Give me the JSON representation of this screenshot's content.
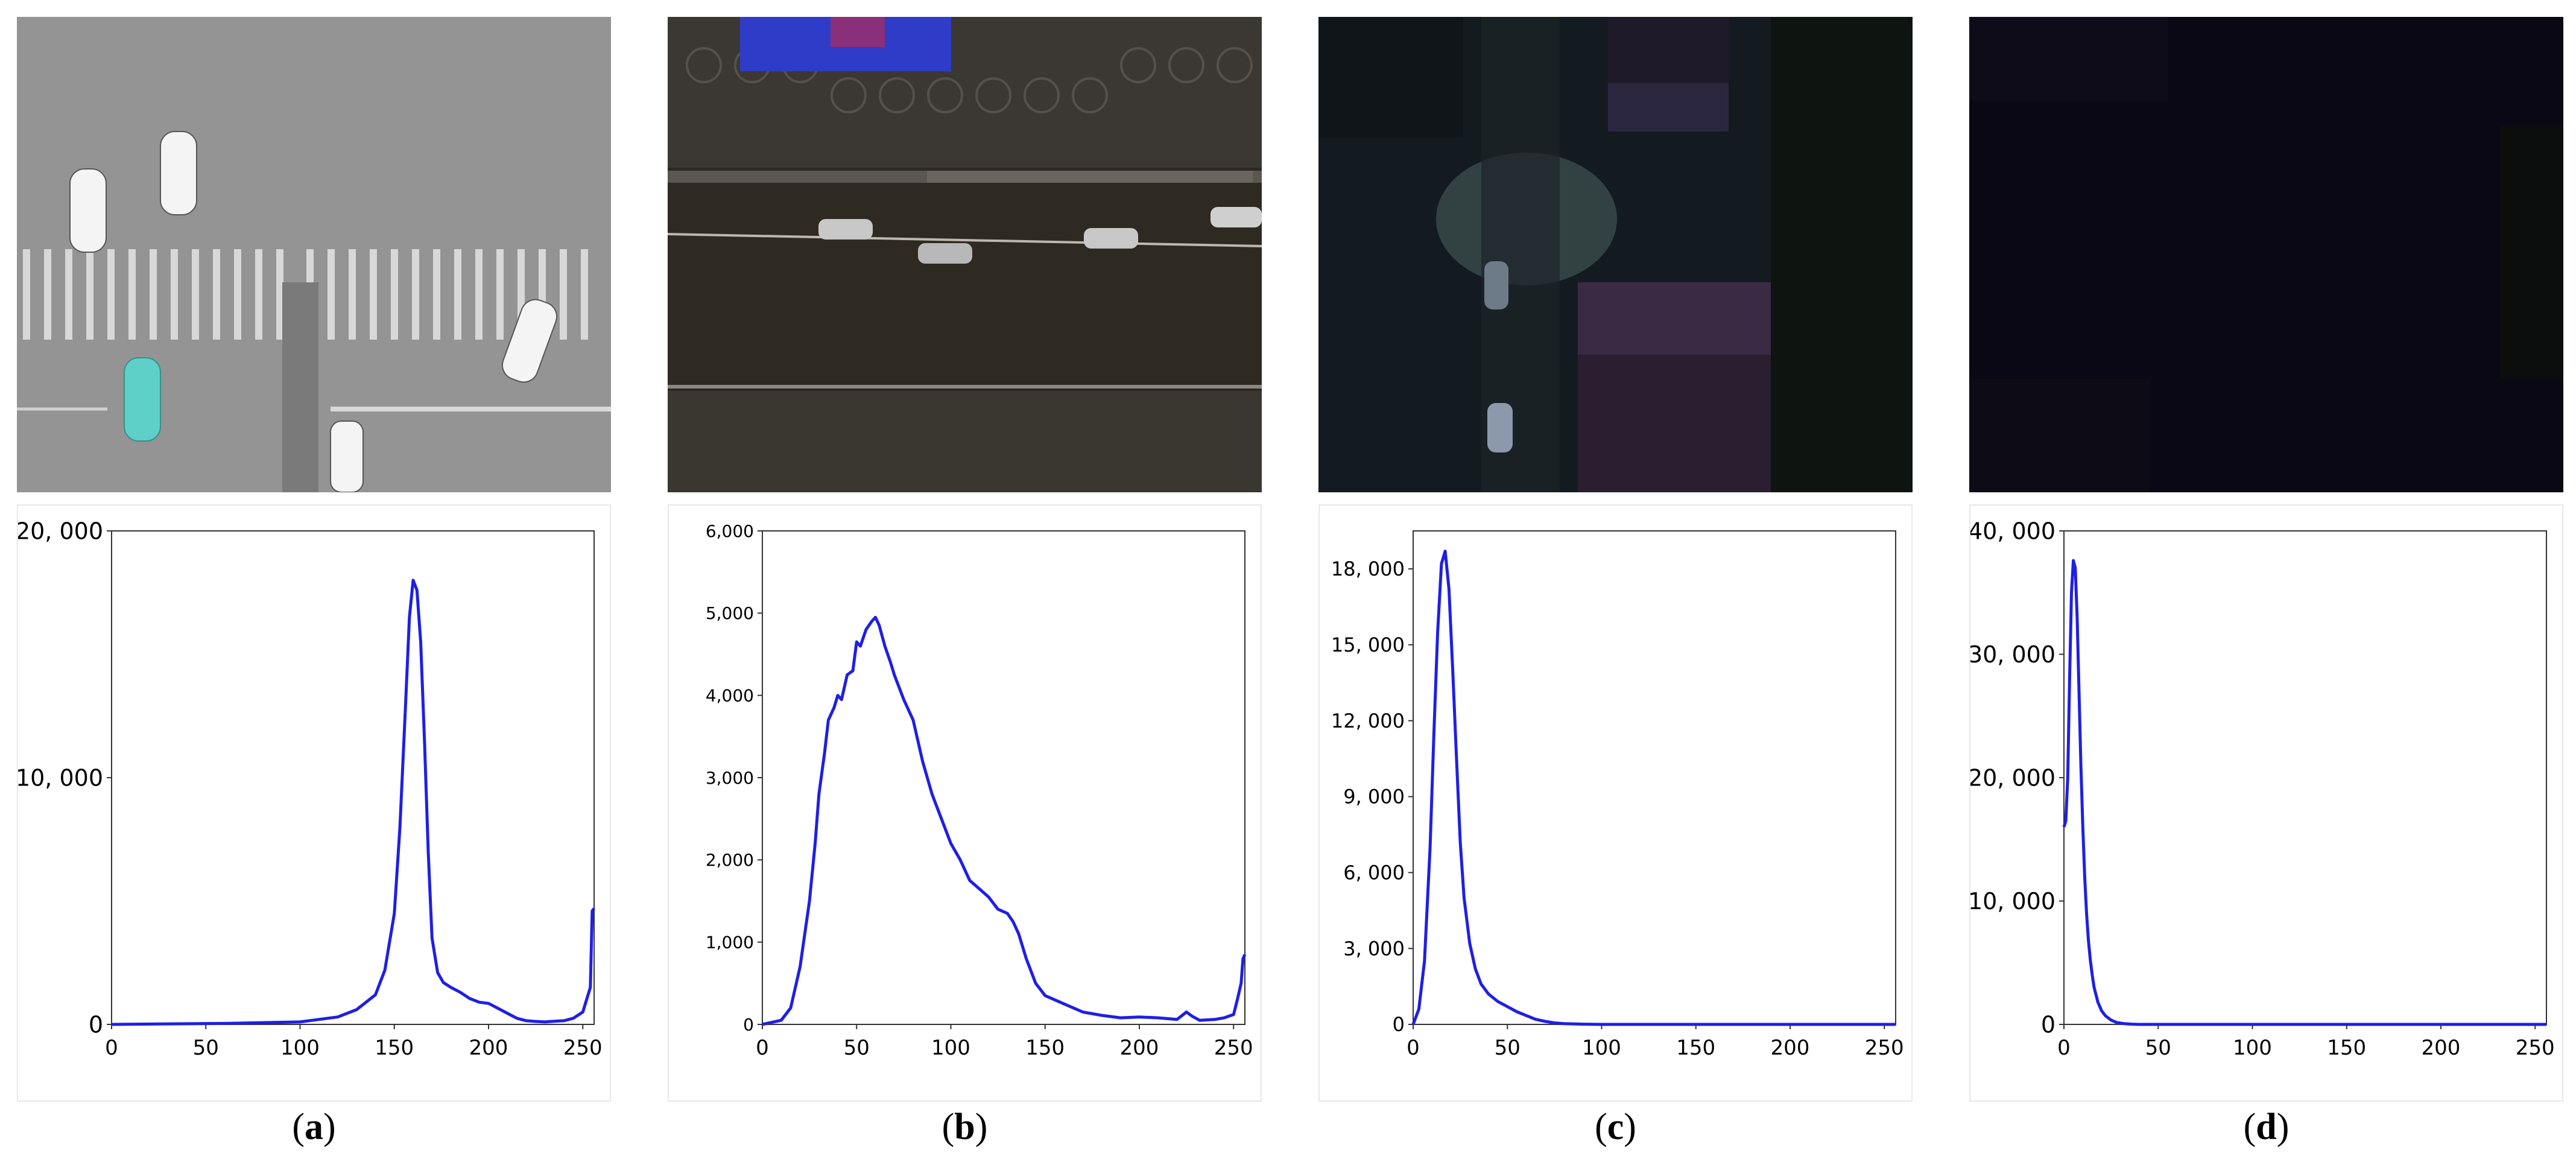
{
  "panels": [
    {
      "letter": "a",
      "scene": "day"
    },
    {
      "letter": "b",
      "scene": "evening"
    },
    {
      "letter": "c",
      "scene": "night"
    },
    {
      "letter": "d",
      "scene": "dark-night"
    }
  ],
  "colors": {
    "line": "#1f1fe6",
    "axis": "#333333"
  },
  "chart_data": [
    {
      "type": "line",
      "xlim": [
        0,
        256
      ],
      "ylim": [
        0,
        20000
      ],
      "xticks": [
        0,
        50,
        100,
        150,
        200,
        250
      ],
      "xtick_labels": [
        "0",
        "50",
        "100",
        "150",
        "200",
        "250"
      ],
      "yticks": [
        0,
        10000,
        20000
      ],
      "ytick_labels": [
        "0",
        "10, 000",
        "20, 000"
      ],
      "tick_font": 38,
      "series": [
        {
          "x": [
            0,
            60,
            100,
            120,
            130,
            140,
            145,
            150,
            153,
            156,
            158,
            160,
            162,
            164,
            166,
            168,
            170,
            173,
            176,
            180,
            185,
            190,
            195,
            200,
            205,
            210,
            215,
            220,
            225,
            230,
            235,
            240,
            245,
            250,
            252,
            254,
            255,
            256
          ],
          "y": [
            0,
            40,
            100,
            300,
            600,
            1200,
            2200,
            4500,
            8000,
            13000,
            16500,
            18000,
            17600,
            15500,
            11500,
            7000,
            3500,
            2100,
            1700,
            1500,
            1300,
            1050,
            900,
            850,
            650,
            450,
            250,
            150,
            120,
            100,
            130,
            150,
            250,
            500,
            1000,
            1500,
            4600,
            4700
          ]
        }
      ]
    },
    {
      "type": "line",
      "xlim": [
        0,
        256
      ],
      "ylim": [
        0,
        6000
      ],
      "xticks": [
        0,
        50,
        100,
        150,
        200,
        250
      ],
      "xtick_labels": [
        "0",
        "50",
        "100",
        "150",
        "200",
        "250"
      ],
      "yticks": [
        0,
        1000,
        2000,
        3000,
        4000,
        5000,
        6000
      ],
      "ytick_labels": [
        "0",
        "1,000",
        "2,000",
        "3,000",
        "4,000",
        "5,000",
        "6,000"
      ],
      "tick_font": 28,
      "series": [
        {
          "x": [
            0,
            10,
            15,
            20,
            25,
            28,
            30,
            33,
            35,
            38,
            40,
            42,
            45,
            48,
            50,
            52,
            55,
            58,
            60,
            62,
            65,
            68,
            70,
            75,
            80,
            85,
            90,
            95,
            100,
            105,
            110,
            115,
            120,
            125,
            130,
            133,
            136,
            140,
            145,
            150,
            160,
            170,
            180,
            190,
            200,
            210,
            220,
            225,
            228,
            232,
            240,
            245,
            250,
            252,
            254,
            255,
            256
          ],
          "y": [
            0,
            50,
            200,
            700,
            1500,
            2200,
            2800,
            3300,
            3700,
            3850,
            4000,
            3950,
            4250,
            4300,
            4650,
            4600,
            4800,
            4900,
            4950,
            4850,
            4600,
            4400,
            4250,
            3950,
            3700,
            3200,
            2800,
            2500,
            2200,
            2000,
            1750,
            1650,
            1550,
            1400,
            1350,
            1250,
            1100,
            800,
            500,
            350,
            250,
            150,
            110,
            80,
            90,
            80,
            60,
            150,
            100,
            50,
            60,
            80,
            120,
            300,
            500,
            800,
            850
          ]
        }
      ]
    },
    {
      "type": "line",
      "xlim": [
        0,
        256
      ],
      "ylim": [
        0,
        19500
      ],
      "xticks": [
        0,
        50,
        100,
        150,
        200,
        250
      ],
      "xtick_labels": [
        "0",
        "50",
        "100",
        "150",
        "200",
        "250"
      ],
      "yticks": [
        0,
        3000,
        6000,
        9000,
        12000,
        15000,
        18000
      ],
      "ytick_labels": [
        "0",
        "3, 000",
        "6, 000",
        "9, 000",
        "12, 000",
        "15, 000",
        "18, 000"
      ],
      "tick_font": 32,
      "series": [
        {
          "x": [
            0,
            3,
            6,
            9,
            11,
            13,
            15,
            17,
            19,
            21,
            23,
            25,
            27,
            30,
            33,
            36,
            40,
            45,
            50,
            55,
            60,
            65,
            70,
            75,
            80,
            90,
            100,
            150,
            200,
            256
          ],
          "y": [
            0,
            600,
            2500,
            7000,
            11500,
            15500,
            18200,
            18700,
            17200,
            14000,
            10500,
            7200,
            5000,
            3200,
            2200,
            1600,
            1200,
            900,
            700,
            500,
            350,
            200,
            120,
            60,
            30,
            10,
            0,
            0,
            0,
            0
          ]
        }
      ]
    },
    {
      "type": "line",
      "xlim": [
        0,
        256
      ],
      "ylim": [
        0,
        40000
      ],
      "xticks": [
        0,
        50,
        100,
        150,
        200,
        250
      ],
      "xtick_labels": [
        "0",
        "50",
        "100",
        "150",
        "200",
        "250"
      ],
      "yticks": [
        0,
        10000,
        20000,
        30000,
        40000
      ],
      "ytick_labels": [
        "0",
        "10, 000",
        "20, 000",
        "30, 000",
        "40, 000"
      ],
      "tick_font": 38,
      "series": [
        {
          "x": [
            0,
            1,
            2,
            3,
            4,
            5,
            6,
            7,
            8,
            9,
            10,
            11,
            12,
            13,
            14,
            15,
            16,
            18,
            20,
            22,
            25,
            28,
            32,
            36,
            40,
            50,
            60,
            100,
            256
          ],
          "y": [
            16000,
            16500,
            20000,
            28000,
            35000,
            37600,
            37000,
            33000,
            27000,
            21000,
            16000,
            12000,
            9000,
            6800,
            5200,
            4000,
            3000,
            1800,
            1100,
            700,
            350,
            150,
            60,
            20,
            0,
            0,
            0,
            0,
            0
          ]
        }
      ]
    }
  ]
}
